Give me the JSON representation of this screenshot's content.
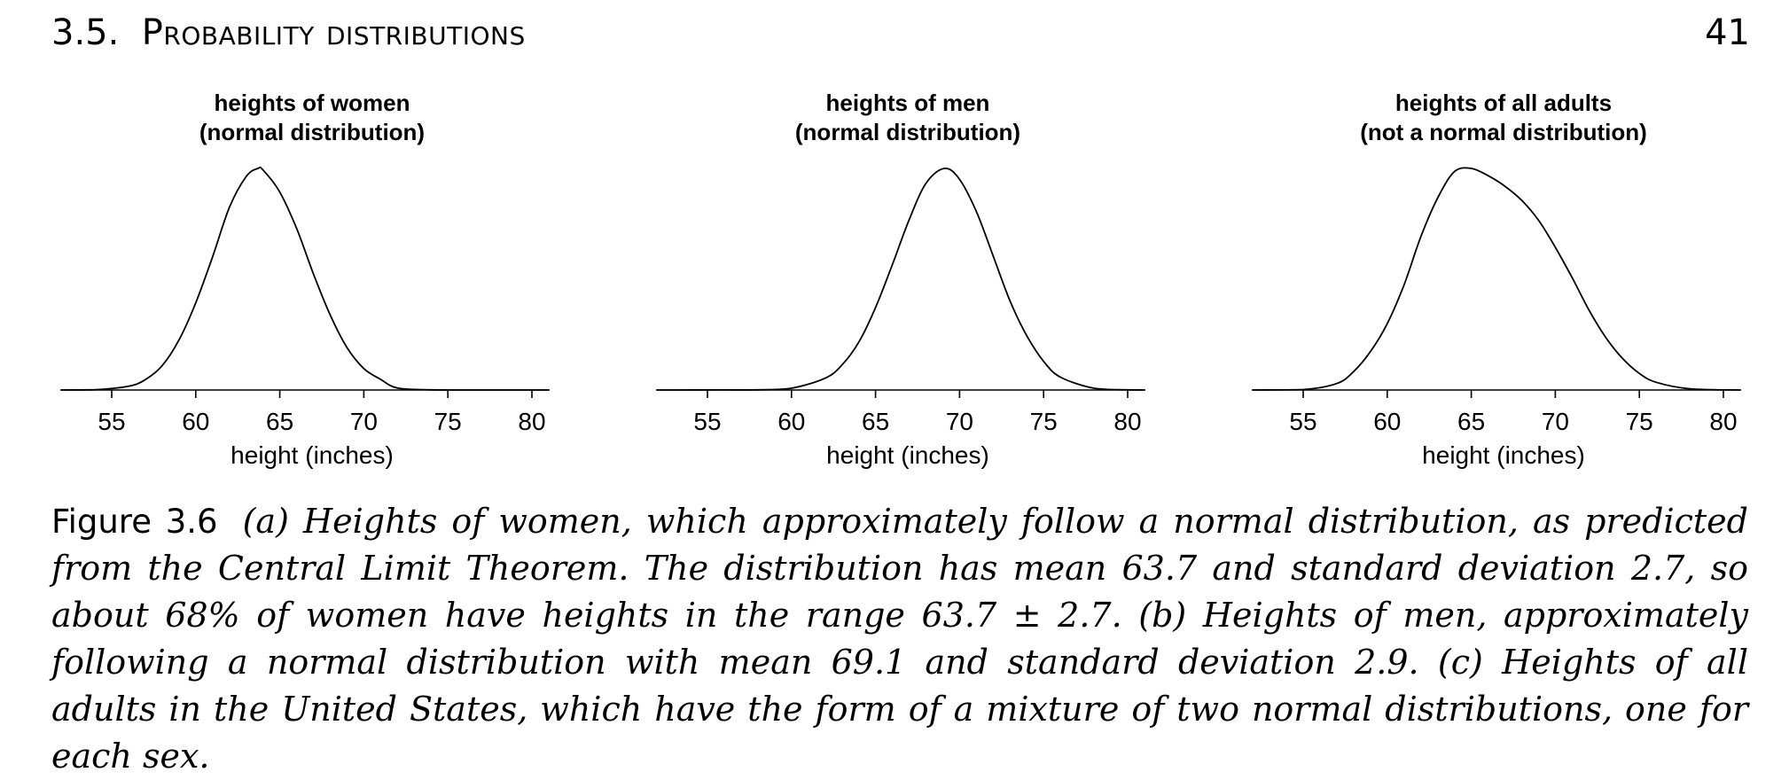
{
  "header": {
    "section_number": "3.5.",
    "section_title": "Probability distributions",
    "page_number": "41"
  },
  "chart_data": [
    {
      "type": "line",
      "title": "heights of women",
      "subtitle": "(normal distribution)",
      "xlabel": "height (inches)",
      "ylabel": "",
      "xlim": [
        52,
        81
      ],
      "xticks": [
        55,
        60,
        65,
        70,
        75,
        80
      ],
      "mean": 63.7,
      "sd": 2.7,
      "series": [
        {
          "x": [
            52,
            54,
            56,
            57,
            58,
            59,
            60,
            61,
            62,
            63,
            63.7,
            64,
            65,
            66,
            67,
            68,
            69,
            70,
            71,
            72,
            74,
            76,
            78,
            81
          ],
          "y": [
            1e-05,
            0.0002,
            0.0025,
            0.0069,
            0.0162,
            0.0333,
            0.0581,
            0.0888,
            0.1217,
            0.1424,
            0.1478,
            0.1468,
            0.132,
            0.1078,
            0.0775,
            0.05,
            0.0283,
            0.0143,
            0.0071,
            0.0013,
            0.0001,
            0.0,
            0.0,
            0.0
          ]
        }
      ]
    },
    {
      "type": "line",
      "title": "heights of men",
      "subtitle": "(normal distribution)",
      "xlabel": "height (inches)",
      "ylabel": "",
      "xlim": [
        52,
        81
      ],
      "xticks": [
        55,
        60,
        65,
        70,
        75,
        80
      ],
      "mean": 69.1,
      "sd": 2.9,
      "series": [
        {
          "x": [
            52,
            56,
            58,
            60,
            62,
            63,
            64,
            65,
            66,
            67,
            68,
            69.1,
            70,
            71,
            72,
            73,
            74,
            75,
            76,
            78,
            80,
            81
          ],
          "y": [
            0.0,
            5e-05,
            0.0001,
            0.0011,
            0.0073,
            0.0155,
            0.0296,
            0.0512,
            0.0778,
            0.1057,
            0.1283,
            0.1376,
            0.1308,
            0.1108,
            0.0832,
            0.0553,
            0.0337,
            0.0178,
            0.008,
            0.0011,
            0.0001,
            0.0
          ]
        }
      ]
    },
    {
      "type": "line",
      "title": "heights of all adults",
      "subtitle": "(not a normal distribution)",
      "xlabel": "height (inches)",
      "ylabel": "",
      "xlim": [
        52,
        81
      ],
      "xticks": [
        55,
        60,
        65,
        70,
        75,
        80
      ],
      "series": [
        {
          "x": [
            52,
            55,
            57,
            58,
            59,
            60,
            61,
            62,
            63,
            64,
            65,
            66,
            67,
            68,
            69,
            70,
            71,
            72,
            73,
            74,
            75,
            76,
            78,
            81
          ],
          "y": [
            0.0,
            0.0002,
            0.0032,
            0.0091,
            0.019,
            0.0328,
            0.052,
            0.0758,
            0.095,
            0.108,
            0.1096,
            0.106,
            0.1008,
            0.0938,
            0.084,
            0.0706,
            0.0556,
            0.0396,
            0.026,
            0.0156,
            0.0082,
            0.0038,
            0.0006,
            0.0
          ]
        }
      ]
    }
  ],
  "caption": {
    "label": "Figure 3.6",
    "text": "(a) Heights of women, which approximately follow a normal distribution, as predicted from the Central Limit Theorem. The distribution has mean 63.7 and standard deviation 2.7, so about 68% of women have heights in the range 63.7 ± 2.7. (b) Heights of men, approximately following a normal distribution with mean 69.1 and standard deviation 2.9. (c) Heights of all adults in the United States, which have the form of a mixture of two normal distributions, one for each sex."
  }
}
